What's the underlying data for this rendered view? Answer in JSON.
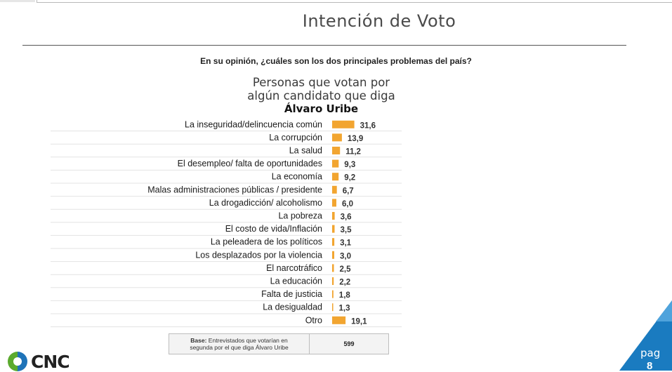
{
  "slide": {
    "title": "Intención de Voto",
    "question": "En su opinión, ¿cuáles son los dos principales problemas del país?",
    "subtitle_line1": "Personas que votan por",
    "subtitle_line2": "algún candidato que diga",
    "subtitle_name": "Álvaro Uribe"
  },
  "base": {
    "label_bold": "Base:",
    "label_line1": "Entrevistados que votarían en",
    "label_line2": "segunda por el que diga Álvaro Uribe",
    "value": "599"
  },
  "brand": {
    "logo_text": "CNC",
    "page_label": "pag",
    "page_number": "8"
  },
  "colors": {
    "bar": "#F2A530",
    "accent_blue": "#1A7BC0",
    "logo_green": "#5BAA2E",
    "logo_blue": "#1E73B8"
  },
  "chart_data": {
    "type": "bar",
    "orientation": "horizontal",
    "categories": [
      "La inseguridad/delincuencia común",
      "La corrupción",
      "La salud",
      "El desempleo/ falta de oportunidades",
      "La economía",
      "Malas administraciones públicas / presidente",
      "La drogadicción/ alcoholismo",
      "La pobreza",
      "El costo de vida/Inflación",
      "La peleadera de los políticos",
      "Los desplazados por la violencia",
      "El narcotráfico",
      "La educación",
      "Falta de justicia",
      "La desigualdad",
      "Otro"
    ],
    "values": [
      31.6,
      13.9,
      11.2,
      9.3,
      9.2,
      6.7,
      6.0,
      3.6,
      3.5,
      3.1,
      3.0,
      2.5,
      2.2,
      1.8,
      1.3,
      19.1
    ],
    "value_labels": [
      "31,6",
      "13,9",
      "11,2",
      "9,3",
      "9,2",
      "6,7",
      "6,0",
      "3,6",
      "3,5",
      "3,1",
      "3,0",
      "2,5",
      "2,2",
      "1,8",
      "1,3",
      "19,1"
    ]
  }
}
